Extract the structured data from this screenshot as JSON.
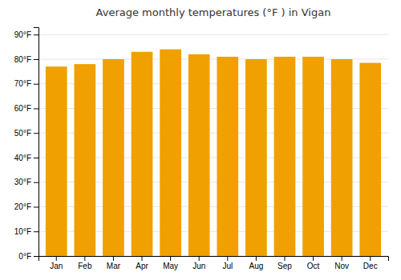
{
  "chart_data": {
    "type": "bar",
    "title": "Average monthly temperatures (°F ) in Vigan",
    "categories": [
      "Jan",
      "Feb",
      "Mar",
      "Apr",
      "May",
      "Jun",
      "Jul",
      "Aug",
      "Sep",
      "Oct",
      "Nov",
      "Dec"
    ],
    "values": [
      77,
      78,
      80,
      83,
      84,
      82,
      81,
      80,
      81,
      81,
      80,
      78.5
    ],
    "color": "#F0A000",
    "ylim": [
      0,
      93
    ],
    "yticks": [
      {
        "value": 0,
        "label": "0°F"
      },
      {
        "value": 10,
        "label": "10°F"
      },
      {
        "value": 20,
        "label": "20°F"
      },
      {
        "value": 30,
        "label": "30°F"
      },
      {
        "value": 40,
        "label": "40°F"
      },
      {
        "value": 50,
        "label": "50°F"
      },
      {
        "value": 60,
        "label": "60°F"
      },
      {
        "value": 70,
        "label": "70°F"
      },
      {
        "value": 80,
        "label": "80°F"
      },
      {
        "value": 90,
        "label": "90°F"
      }
    ],
    "grid": true
  }
}
